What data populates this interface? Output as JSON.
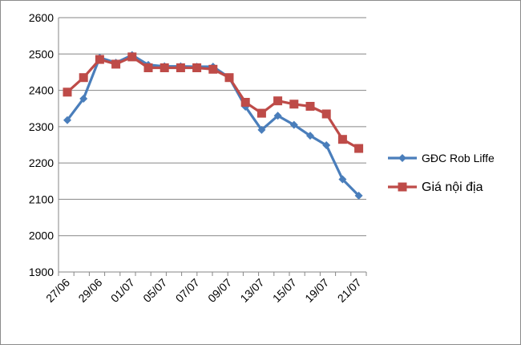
{
  "chart_data": {
    "type": "line",
    "title": "",
    "xlabel": "",
    "ylabel": "",
    "ylim": [
      1900,
      2600
    ],
    "yticks": [
      1900,
      2000,
      2100,
      2200,
      2300,
      2400,
      2500,
      2600
    ],
    "grid": true,
    "legend_position": "right",
    "x_tick_labels": [
      "27/06",
      "29/06",
      "01/07",
      "05/07",
      "07/07",
      "09/07",
      "13/07",
      "15/07",
      "19/07",
      "21/07"
    ],
    "series": [
      {
        "name": "GĐC Rob Liffe",
        "color": "#4a7ebb",
        "marker": "diamond",
        "values": [
          2318,
          2377,
          2490,
          2476,
          2497,
          2470,
          2466,
          2466,
          2465,
          2465,
          2435,
          2355,
          2291,
          2330,
          2305,
          2275,
          2249,
          2155,
          2110
        ]
      },
      {
        "name": "Giá nội địa",
        "color": "#be4b48",
        "marker": "square",
        "values": [
          2395,
          2435,
          2485,
          2472,
          2492,
          2462,
          2462,
          2462,
          2462,
          2458,
          2435,
          2367,
          2337,
          2371,
          2362,
          2356,
          2335,
          2265,
          2240
        ]
      }
    ]
  }
}
